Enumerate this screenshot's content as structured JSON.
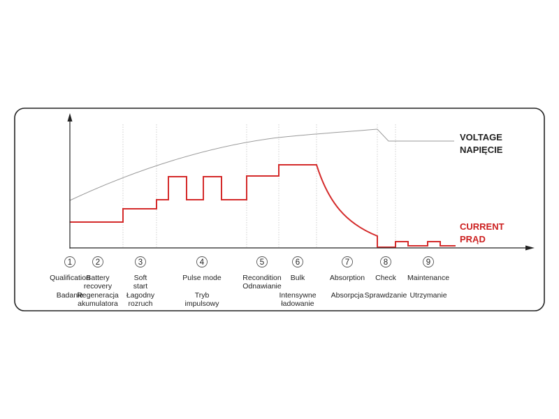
{
  "colors": {
    "voltage_line": "#9a9a9a",
    "current_line": "#d42a2a",
    "voltage_label": "#222222",
    "current_label": "#cc1f1f",
    "axis": "#222222",
    "divider": "#cfcfcf",
    "frame": "#222222",
    "text": "#222222"
  },
  "legend": {
    "voltage": [
      "VOLTAGE",
      "NAPIĘCIE"
    ],
    "current": [
      "CURRENT",
      "PRĄD"
    ]
  },
  "stages": [
    {
      "number": "1",
      "label_en": [
        "Qualification"
      ],
      "label_pl": [
        "Badanie"
      ]
    },
    {
      "number": "2",
      "label_en": [
        "Battery",
        "recovery"
      ],
      "label_pl": [
        "Regeneracja",
        "akumulatora"
      ]
    },
    {
      "number": "3",
      "label_en": [
        "Soft",
        "start"
      ],
      "label_pl": [
        "Łagodny",
        "rozruch"
      ]
    },
    {
      "number": "4",
      "label_en": [
        "Pulse mode"
      ],
      "label_pl": [
        "Tryb",
        "impulsowy"
      ]
    },
    {
      "number": "5",
      "label_en": [
        "Recondition",
        "Odnawianie"
      ],
      "label_pl": []
    },
    {
      "number": "6",
      "label_en": [
        "Bulk"
      ],
      "label_pl": [
        "Intensywne",
        "ładowanie"
      ]
    },
    {
      "number": "7",
      "label_en": [
        "Absorption"
      ],
      "label_pl": [
        "Absorpcja"
      ]
    },
    {
      "number": "8",
      "label_en": [
        "Check"
      ],
      "label_pl": [
        "Sprawdzanie"
      ]
    },
    {
      "number": "9",
      "label_en": [
        "Maintenance"
      ],
      "label_pl": [
        "Utrzymanie"
      ]
    }
  ]
}
